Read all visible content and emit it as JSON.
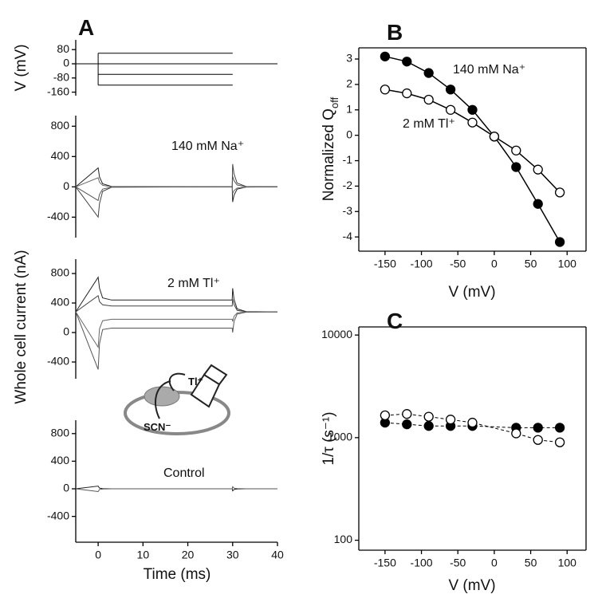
{
  "chart_data": [
    {
      "type": "line",
      "panel_label": "A",
      "ylabel": "V (mV)",
      "xlim": [
        -5,
        40
      ],
      "ylim": [
        -180,
        135
      ],
      "yticks": [
        80,
        0,
        -80,
        -160
      ],
      "series": [
        {
          "color": "#000000",
          "x": [
            -5,
            40
          ],
          "values": [
            0,
            0
          ]
        },
        {
          "color": "#000000",
          "x": [
            0,
            0
          ],
          "values": [
            60,
            -120
          ]
        },
        {
          "color": "#000000",
          "x": [
            0,
            30
          ],
          "values": [
            60,
            60
          ]
        },
        {
          "color": "#000000",
          "x": [
            0,
            30
          ],
          "values": [
            -60,
            -60
          ]
        },
        {
          "color": "#000000",
          "x": [
            0,
            30
          ],
          "values": [
            -120,
            -120
          ]
        }
      ]
    },
    {
      "type": "line",
      "ylabel": "Whole cell current (nA)",
      "annotations": [
        "140 mM Na⁺"
      ],
      "xlim": [
        -5,
        40
      ],
      "ylim": [
        -670,
        940
      ],
      "yticks": [
        800,
        400,
        0,
        -400
      ],
      "x": [
        -5,
        0,
        0.3,
        1,
        3,
        29.9,
        30,
        30.3,
        31,
        33,
        40
      ],
      "series": [
        {
          "color": "#222222",
          "values": [
            0,
            250,
            130,
            40,
            5,
            0,
            -200,
            -110,
            -30,
            -3,
            0
          ]
        },
        {
          "color": "#444444",
          "values": [
            0,
            -400,
            -220,
            -60,
            -5,
            0,
            300,
            170,
            50,
            5,
            0
          ]
        },
        {
          "color": "#666666",
          "values": [
            0,
            120,
            60,
            20,
            2,
            0,
            -90,
            -50,
            -15,
            -2,
            0
          ]
        },
        {
          "color": "#555555",
          "values": [
            0,
            -180,
            -100,
            -30,
            -3,
            0,
            140,
            80,
            25,
            3,
            0
          ]
        }
      ]
    },
    {
      "type": "line",
      "annotations": [
        "2 mM Tl⁺"
      ],
      "xlim": [
        -5,
        40
      ],
      "ylim": [
        -627,
        995
      ],
      "yticks": [
        800,
        400,
        0,
        -400
      ],
      "x": [
        -5,
        0,
        0.3,
        1,
        3,
        29.9,
        30,
        30.3,
        31,
        33,
        40
      ],
      "series": [
        {
          "color": "#222222",
          "values": [
            280,
            750,
            600,
            470,
            440,
            440,
            600,
            450,
            320,
            285,
            280
          ]
        },
        {
          "color": "#444444",
          "values": [
            280,
            500,
            420,
            375,
            360,
            360,
            450,
            380,
            300,
            282,
            280
          ]
        },
        {
          "color": "#666666",
          "values": [
            280,
            -200,
            50,
            160,
            180,
            180,
            150,
            220,
            265,
            278,
            280
          ]
        },
        {
          "color": "#555555",
          "values": [
            280,
            -500,
            -150,
            40,
            60,
            60,
            0,
            150,
            250,
            276,
            280
          ]
        }
      ]
    },
    {
      "type": "line",
      "annotations": [
        "Control"
      ],
      "xlabel": "Time (ms)",
      "xlim": [
        -5,
        40
      ],
      "ylim": [
        -774,
        994
      ],
      "yticks": [
        800,
        400,
        0,
        -400
      ],
      "xticks": [
        0,
        10,
        20,
        30,
        40
      ],
      "x": [
        -5,
        0,
        0.3,
        1,
        3,
        29.9,
        30,
        30.3,
        31,
        33,
        40
      ],
      "series": [
        {
          "color": "#222222",
          "values": [
            0,
            40,
            10,
            2,
            0,
            0,
            -30,
            -10,
            -2,
            0,
            0
          ]
        },
        {
          "color": "#555555",
          "values": [
            0,
            -40,
            -10,
            -2,
            0,
            0,
            30,
            10,
            2,
            0,
            0
          ]
        }
      ]
    },
    {
      "type": "scatter",
      "panel_label": "B",
      "ylabel": "Normalized Q",
      "ylabel_subscript": "off",
      "xlabel": "V (mV)",
      "annotations": [
        "140 mM Na⁺",
        "2 mM Tl⁺"
      ],
      "xlim": [
        -186,
        126
      ],
      "ylim": [
        -4.56,
        3.44
      ],
      "xticks": [
        -150,
        -100,
        -50,
        0,
        50,
        100
      ],
      "yticks": [
        -4,
        -3,
        -2,
        -1,
        0,
        1,
        2,
        3
      ],
      "x": [
        -150,
        -120,
        -90,
        -60,
        -30,
        0,
        30,
        60,
        90
      ],
      "series": [
        {
          "color": "#000000",
          "marker": "filled",
          "values": [
            3.1,
            2.9,
            2.45,
            1.8,
            1.0,
            -0.05,
            -1.25,
            -2.7,
            -4.2
          ]
        },
        {
          "color": "#000000",
          "marker": "open",
          "values": [
            1.8,
            1.65,
            1.4,
            1.0,
            0.5,
            -0.05,
            -0.6,
            -1.35,
            -2.25
          ]
        }
      ]
    },
    {
      "type": "scatter",
      "panel_label": "C",
      "ylabel": "1/τ (s⁻¹)",
      "xlabel": "V (mV)",
      "log_y": true,
      "dashed": true,
      "xlim": [
        -186,
        126
      ],
      "ylim": [
        80,
        12000
      ],
      "xticks": [
        -150,
        -100,
        -50,
        0,
        50,
        100
      ],
      "yticks": [
        100,
        1000,
        10000
      ],
      "x": [
        -150,
        -120,
        -90,
        -60,
        -30,
        30,
        60,
        90
      ],
      "series": [
        {
          "color": "#000000",
          "marker": "filled",
          "values": [
            1400,
            1350,
            1300,
            1300,
            1300,
            1250,
            1250,
            1250
          ]
        },
        {
          "color": "#000000",
          "marker": "open",
          "values": [
            1650,
            1700,
            1600,
            1500,
            1400,
            1100,
            950,
            900
          ]
        }
      ]
    }
  ],
  "inset": {
    "ion": "Tl⁺",
    "anion": "SCN⁻"
  }
}
